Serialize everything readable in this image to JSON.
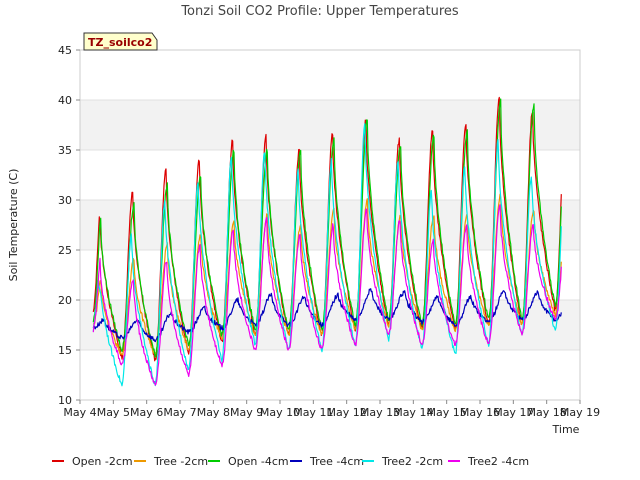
{
  "chart_data": {
    "type": "line",
    "title": "Tonzi Soil CO2 Profile: Upper Temperatures",
    "xlabel": "Time",
    "ylabel": "Soil Temperature (C)",
    "ylim": [
      10,
      45
    ],
    "yticks": [
      10,
      15,
      20,
      25,
      30,
      35,
      40,
      45
    ],
    "xlim": [
      4,
      19
    ],
    "xticks": [
      4,
      5,
      6,
      7,
      8,
      9,
      10,
      11,
      12,
      13,
      14,
      15,
      16,
      17,
      18,
      19
    ],
    "xtick_labels": [
      "May 4",
      "May 5",
      "May 6",
      "May 7",
      "May 8",
      "May 9",
      "May 10",
      "May 11",
      "May 12",
      "May 13",
      "May 14",
      "May 15",
      "May 16",
      "May 17",
      "May 18",
      "May 19"
    ],
    "grid": "horizontal bands",
    "legend_placement": "bottom",
    "annotation": "TZ_soilco2",
    "series": [
      {
        "name": "Open -2cm",
        "color": "#dd0000",
        "daily_min": [
          17.2,
          14.3,
          14.0,
          14.8,
          15.8,
          16.5,
          16.5,
          16.5,
          17.0,
          17.5,
          17.0,
          17.0,
          17.5,
          17.5,
          19.0
        ],
        "daily_max": [
          29.5,
          30.8,
          33.0,
          34.0,
          36.0,
          36.3,
          35.0,
          36.7,
          38.0,
          36.0,
          37.0,
          37.7,
          40.3,
          39.0
        ],
        "phase": 0.58,
        "start": 18.7
      },
      {
        "name": "Tree -2cm",
        "color": "#ee9900",
        "daily_min": [
          17.0,
          14.5,
          14.5,
          15.0,
          16.0,
          16.5,
          16.5,
          16.5,
          17.0,
          17.5,
          17.0,
          17.0,
          17.5,
          17.5,
          18.5
        ],
        "daily_max": [
          22.0,
          24.0,
          25.5,
          26.5,
          28.0,
          28.5,
          27.5,
          29.0,
          30.0,
          28.5,
          28.5,
          28.5,
          30.5,
          29.0
        ],
        "phase": 0.62,
        "start": 17.5
      },
      {
        "name": "Open -4cm",
        "color": "#00cc00",
        "daily_min": [
          17.5,
          15.0,
          14.5,
          15.5,
          16.5,
          17.0,
          17.0,
          17.0,
          17.5,
          18.0,
          17.5,
          17.5,
          18.0,
          18.0,
          19.5
        ],
        "daily_max": [
          28.0,
          29.5,
          31.5,
          32.5,
          35.0,
          35.0,
          35.0,
          36.0,
          38.0,
          35.5,
          36.5,
          37.0,
          40.0,
          39.5
        ],
        "phase": 0.62,
        "start": 17.8
      },
      {
        "name": "Tree -4cm",
        "color": "#0000bb",
        "daily_min": [
          17.0,
          16.2,
          16.0,
          16.8,
          17.2,
          17.5,
          17.5,
          17.5,
          18.0,
          18.0,
          17.8,
          17.5,
          17.8,
          18.0,
          18.0
        ],
        "daily_max": [
          18.0,
          18.0,
          18.7,
          19.2,
          20.0,
          20.5,
          20.3,
          20.5,
          21.0,
          20.8,
          20.3,
          20.3,
          21.0,
          20.8
        ],
        "phase": 0.75,
        "start": 17.3
      },
      {
        "name": "Tree2 -2cm",
        "color": "#00e8e8",
        "daily_min": [
          16.5,
          11.5,
          11.5,
          13.0,
          14.0,
          15.5,
          15.0,
          15.0,
          15.5,
          16.0,
          15.0,
          14.5,
          15.5,
          16.5,
          17.0
        ],
        "daily_max": [
          24.0,
          26.5,
          30.0,
          32.0,
          34.5,
          35.0,
          33.0,
          34.0,
          37.5,
          34.0,
          31.0,
          33.5,
          36.0,
          32.5
        ],
        "phase": 0.55,
        "start": 17.0
      },
      {
        "name": "Tree2 -4cm",
        "color": "#ee00ee",
        "daily_min": [
          16.0,
          13.5,
          11.5,
          12.5,
          13.5,
          15.0,
          15.0,
          15.0,
          15.5,
          16.5,
          15.5,
          15.5,
          15.5,
          16.5,
          18.0
        ],
        "daily_max": [
          24.0,
          22.0,
          24.0,
          25.5,
          27.0,
          28.0,
          26.5,
          27.5,
          29.0,
          28.0,
          26.0,
          27.5,
          29.5,
          27.5
        ],
        "phase": 0.6,
        "start": 17.0
      }
    ]
  }
}
